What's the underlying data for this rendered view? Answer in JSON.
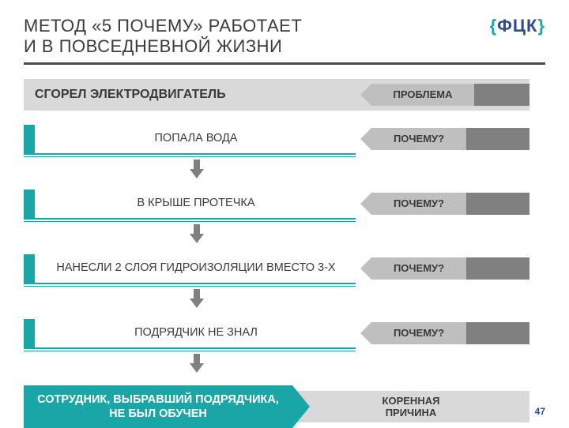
{
  "title_line1": "МЕТОД «5 ПОЧЕМУ» РАБОТАЕТ",
  "title_line2": "И В ПОВСЕДНЕВНОЙ ЖИЗНИ",
  "logo": {
    "left": "{",
    "mid": "ФЦК",
    "right": "}"
  },
  "problem": {
    "text": "СГОРЕЛ ЭЛЕКТРОДВИГАТЕЛЬ",
    "tag": "ПРОБЛЕМА"
  },
  "why_label": "ПОЧЕМУ?",
  "steps": [
    {
      "text": "ПОПАЛА ВОДА"
    },
    {
      "text": "В КРЫШЕ ПРОТЕЧКА"
    },
    {
      "text": "НАНЕСЛИ 2 СЛОЯ ГИДРОИЗОЛЯЦИИ ВМЕСТО 3-Х"
    },
    {
      "text": "ПОДРЯДЧИК НЕ ЗНАЛ"
    }
  ],
  "root": {
    "text": "СОТРУДНИК, ВЫБРАВШИЙ ПОДРЯДЧИКА, НЕ БЫЛ ОБУЧЕН",
    "tag": "КОРЕННАЯ\nПРИЧИНА"
  },
  "page": "47",
  "colors": {
    "teal": "#1aa6a6",
    "grey_light": "#d9d9d9",
    "grey_mid": "#bfbfbf",
    "grey_dark": "#808080",
    "title_rule": "#4a4a4a",
    "navy": "#2f4a8f"
  },
  "layout": {
    "tag_label_width": 120,
    "tag_tail_width": 60,
    "tag_arrow": 14,
    "problem_tag_label_width": 130,
    "problem_tag_tail_width": 50
  }
}
